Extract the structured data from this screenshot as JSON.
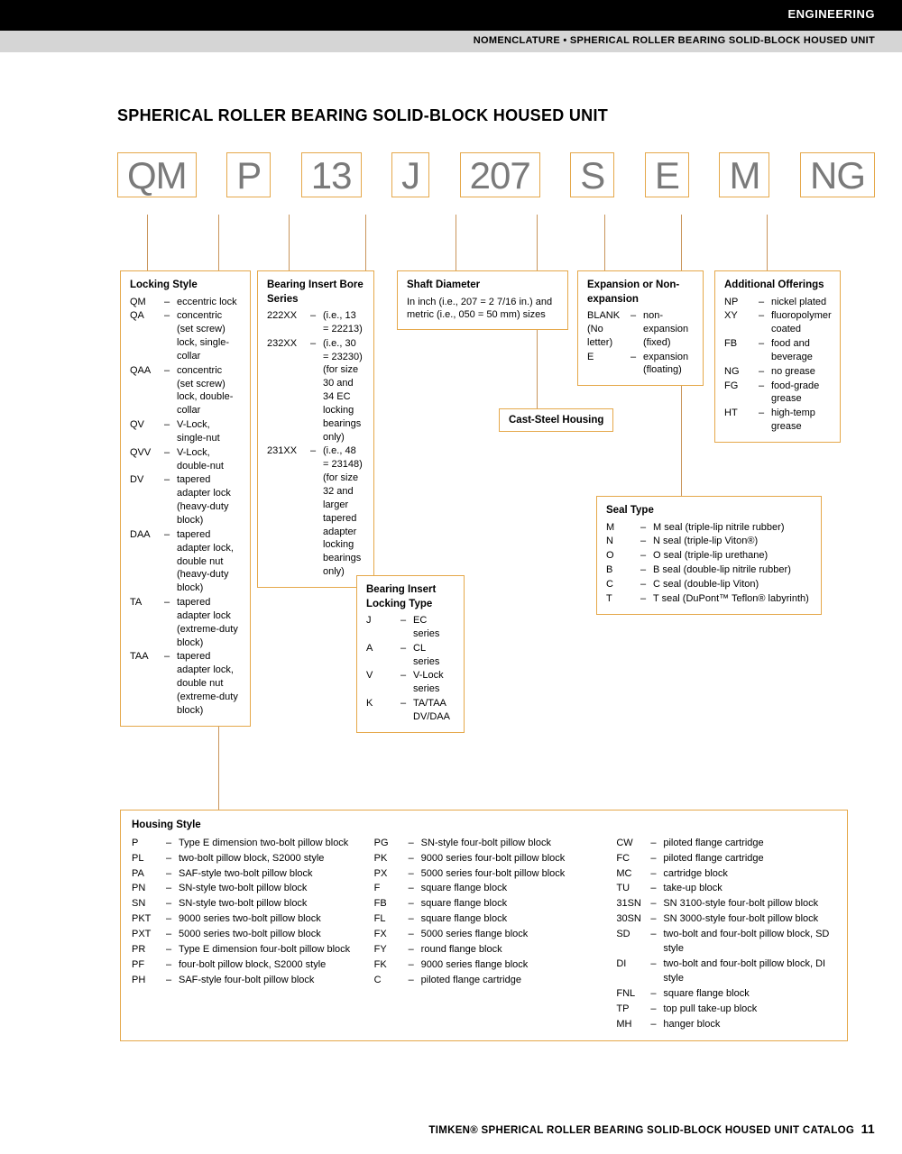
{
  "header": {
    "section": "ENGINEERING",
    "breadcrumb": "NOMENCLATURE • SPHERICAL ROLLER BEARING SOLID-BLOCK HOUSED UNIT"
  },
  "title": "SPHERICAL ROLLER BEARING SOLID-BLOCK HOUSED UNIT",
  "codes": [
    "QM",
    "P",
    "13",
    "J",
    "207",
    "S",
    "E",
    "M",
    "NG"
  ],
  "locking_style": {
    "title": "Locking Style",
    "items": [
      {
        "c": "QM",
        "d": "eccentric lock"
      },
      {
        "c": "QA",
        "d": "concentric (set screw) lock, single-collar"
      },
      {
        "c": "QAA",
        "d": "concentric (set screw) lock, double-collar"
      },
      {
        "c": "QV",
        "d": "V-Lock, single-nut"
      },
      {
        "c": "QVV",
        "d": "V-Lock, double-nut"
      },
      {
        "c": "DV",
        "d": "tapered adapter lock (heavy-duty block)"
      },
      {
        "c": "DAA",
        "d": "tapered adapter lock, double nut (heavy-duty block)"
      },
      {
        "c": "TA",
        "d": "tapered adapter lock (extreme-duty block)"
      },
      {
        "c": "TAA",
        "d": "tapered adapter lock, double nut (extreme-duty block)"
      }
    ]
  },
  "bore_series": {
    "title": "Bearing Insert Bore Series",
    "items": [
      {
        "c": "222XX",
        "d": "(i.e., 13 = 22213)"
      },
      {
        "c": "232XX",
        "d": "(i.e., 30 = 23230) (for size 30 and 34 EC locking bearings only)"
      },
      {
        "c": "231XX",
        "d": "(i.e., 48 = 23148) (for size 32 and larger tapered adapter locking bearings only)"
      }
    ]
  },
  "locking_type": {
    "title": "Bearing Insert Locking Type",
    "items": [
      {
        "c": "J",
        "d": "EC series"
      },
      {
        "c": "A",
        "d": "CL series"
      },
      {
        "c": "V",
        "d": "V-Lock series"
      },
      {
        "c": "K",
        "d": "TA/TAA DV/DAA"
      }
    ]
  },
  "shaft_diameter": {
    "title": "Shaft Diameter",
    "text": "In inch (i.e., 207 = 2 7/16 in.) and metric (i.e., 050 = 50 mm) sizes"
  },
  "cast_label": "Cast-Steel Housing",
  "expansion": {
    "title": "Expansion or Non-expansion",
    "items": [
      {
        "c": "BLANK (No letter)",
        "d": "non-expansion (fixed)"
      },
      {
        "c": "E",
        "d": "expansion (floating)"
      }
    ]
  },
  "seal_type": {
    "title": "Seal Type",
    "items": [
      {
        "c": "M",
        "d": "M seal (triple-lip nitrile rubber)"
      },
      {
        "c": "N",
        "d": "N seal (triple-lip Viton®)"
      },
      {
        "c": "O",
        "d": "O seal (triple-lip urethane)"
      },
      {
        "c": "B",
        "d": "B seal (double-lip nitrile rubber)"
      },
      {
        "c": "C",
        "d": "C seal (double-lip Viton)"
      },
      {
        "c": "T",
        "d": "T seal (DuPont™ Teflon® labyrinth)"
      }
    ]
  },
  "additional": {
    "title": "Additional Offerings",
    "items": [
      {
        "c": "NP",
        "d": "nickel plated"
      },
      {
        "c": "XY",
        "d": "fluoropolymer coated"
      },
      {
        "c": "FB",
        "d": "food and beverage"
      },
      {
        "c": "NG",
        "d": "no grease"
      },
      {
        "c": "FG",
        "d": "food-grade grease"
      },
      {
        "c": "HT",
        "d": "high-temp grease"
      }
    ]
  },
  "housing_style": {
    "title": "Housing Style",
    "col1": [
      {
        "c": "P",
        "d": "Type E dimension two-bolt pillow block"
      },
      {
        "c": "PL",
        "d": "two-bolt pillow block, S2000 style"
      },
      {
        "c": "PA",
        "d": "SAF-style two-bolt pillow block"
      },
      {
        "c": "PN",
        "d": "SN-style two-bolt pillow block"
      },
      {
        "c": "SN",
        "d": "SN-style two-bolt pillow block"
      },
      {
        "c": "PKT",
        "d": "9000 series two-bolt pillow block"
      },
      {
        "c": "PXT",
        "d": "5000 series two-bolt pillow block"
      },
      {
        "c": "PR",
        "d": "Type E dimension four-bolt pillow block"
      },
      {
        "c": "PF",
        "d": "four-bolt pillow block, S2000 style"
      },
      {
        "c": "PH",
        "d": "SAF-style four-bolt pillow block"
      }
    ],
    "col2": [
      {
        "c": "PG",
        "d": "SN-style four-bolt pillow block"
      },
      {
        "c": "PK",
        "d": "9000 series four-bolt pillow block"
      },
      {
        "c": "PX",
        "d": "5000 series four-bolt pillow block"
      },
      {
        "c": "F",
        "d": "square flange block"
      },
      {
        "c": "FB",
        "d": "square flange block"
      },
      {
        "c": "FL",
        "d": "square flange block"
      },
      {
        "c": "FX",
        "d": "5000 series flange block"
      },
      {
        "c": "FY",
        "d": "round flange block"
      },
      {
        "c": "FK",
        "d": "9000 series flange block"
      },
      {
        "c": "C",
        "d": "piloted flange cartridge"
      }
    ],
    "col3": [
      {
        "c": "CW",
        "d": "piloted flange cartridge"
      },
      {
        "c": "FC",
        "d": "piloted flange cartridge"
      },
      {
        "c": "MC",
        "d": "cartridge block"
      },
      {
        "c": "TU",
        "d": "take-up block"
      },
      {
        "c": "31SN",
        "d": "SN 3100-style four-bolt pillow block"
      },
      {
        "c": "30SN",
        "d": "SN 3000-style four-bolt pillow block"
      },
      {
        "c": "SD",
        "d": "two-bolt and four-bolt pillow block, SD style"
      },
      {
        "c": "DI",
        "d": "two-bolt and four-bolt pillow block, DI style"
      },
      {
        "c": "FNL",
        "d": "square flange block"
      },
      {
        "c": "TP",
        "d": "top pull take-up block"
      },
      {
        "c": "MH",
        "d": "hanger block"
      }
    ]
  },
  "footer": {
    "text": "TIMKEN® SPHERICAL ROLLER BEARING SOLID-BLOCK HOUSED UNIT CATALOG",
    "page": "11"
  },
  "colors": {
    "box_border": "#e5a84a",
    "code_text": "#7a7a7a",
    "gray_bar": "#d5d5d5"
  }
}
